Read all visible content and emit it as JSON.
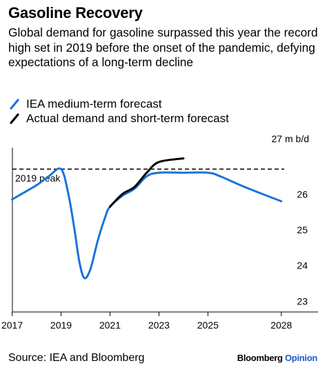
{
  "header": {
    "title": "Gasoline Recovery",
    "subtitle": "Global demand for gasoline surpassed this year the record high set in 2019 before the onset of the pandemic, defying expectations of a long-term decline"
  },
  "footer": {
    "source": "Source: IEA and Bloomberg",
    "brand_main": "Bloomberg",
    "brand_accent": "Opinion"
  },
  "colors": {
    "iea": "#1a73d9",
    "actual": "#000000",
    "accent": "#1d5cc7"
  },
  "chart_data": {
    "type": "line",
    "unit_label": "27 m b/d",
    "xlim": [
      2016.9,
      2029.5
    ],
    "ylim": [
      22.7,
      27.3
    ],
    "x_ticks": [
      2017,
      2019,
      2021,
      2023,
      2025,
      2028
    ],
    "y_ticks": [
      23,
      24,
      25,
      26
    ],
    "grid": false,
    "legend_position": "top-left",
    "reference_line": {
      "label": "2019 peak",
      "value": 26.7,
      "style": "dashed"
    },
    "series": [
      {
        "name": "IEA medium-term forecast",
        "color": "#1a73d9",
        "points": [
          [
            2017.0,
            25.85
          ],
          [
            2017.5,
            26.05
          ],
          [
            2018.0,
            26.25
          ],
          [
            2018.5,
            26.5
          ],
          [
            2019.0,
            26.7
          ],
          [
            2019.3,
            26.0
          ],
          [
            2019.55,
            25.0
          ],
          [
            2019.75,
            24.1
          ],
          [
            2019.95,
            23.65
          ],
          [
            2020.2,
            23.9
          ],
          [
            2020.5,
            24.7
          ],
          [
            2020.8,
            25.35
          ],
          [
            2021.0,
            25.65
          ],
          [
            2021.5,
            25.95
          ],
          [
            2022.0,
            26.15
          ],
          [
            2022.5,
            26.5
          ],
          [
            2023.0,
            26.6
          ],
          [
            2024.0,
            26.6
          ],
          [
            2025.0,
            26.6
          ],
          [
            2025.5,
            26.5
          ],
          [
            2026.5,
            26.2
          ],
          [
            2028.0,
            25.8
          ]
        ]
      },
      {
        "name": "Actual demand and short-term forecast",
        "color": "#000000",
        "points": [
          [
            2021.0,
            25.65
          ],
          [
            2021.5,
            26.0
          ],
          [
            2022.0,
            26.2
          ],
          [
            2022.5,
            26.6
          ],
          [
            2023.0,
            26.9
          ],
          [
            2024.0,
            27.0
          ]
        ]
      }
    ]
  }
}
